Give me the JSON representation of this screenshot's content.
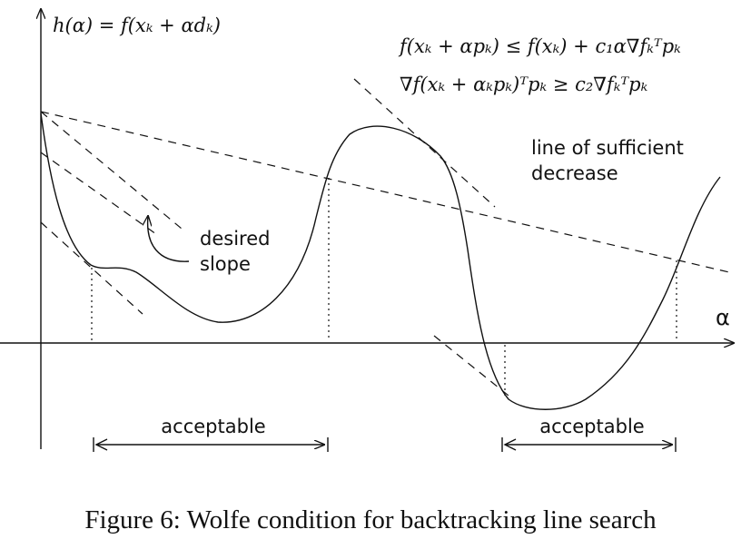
{
  "figure": {
    "function_label": "h(α) = f(xₖ + αdₖ)",
    "conditions": [
      "f(xₖ + αpₖ) ≤ f(xₖ) + c₁α∇fₖᵀpₖ",
      "∇f(xₖ + αₖpₖ)ᵀpₖ ≥ c₂∇fₖᵀpₖ"
    ],
    "sufficient_decrease_label": [
      "line of sufficient",
      "decrease"
    ],
    "slope_label": [
      "desired",
      "slope"
    ],
    "axis_label": "α",
    "intervals": [
      "acceptable",
      "acceptable"
    ],
    "caption": "Figure 6: Wolfe condition for backtracking line search"
  }
}
